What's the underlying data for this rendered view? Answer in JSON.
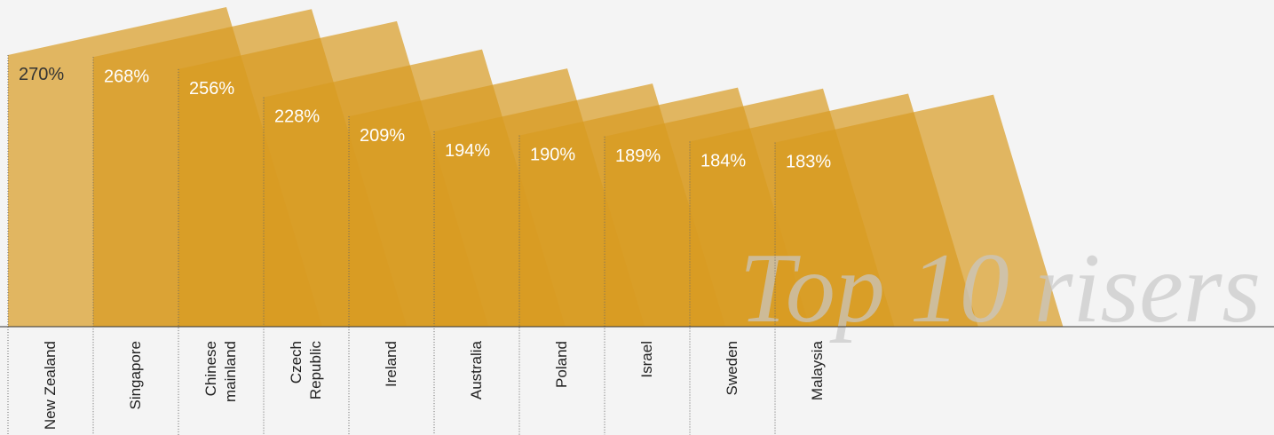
{
  "chart_data": {
    "type": "bar",
    "title": "Top 10 risers",
    "categories": [
      "New Zealand",
      "Singapore",
      "Chinese mainland",
      "Czech Republic",
      "Ireland",
      "Australia",
      "Poland",
      "Israel",
      "Sweden",
      "Malaysia"
    ],
    "values": [
      270,
      268,
      256,
      228,
      209,
      194,
      190,
      189,
      184,
      183
    ],
    "value_labels": [
      "270%",
      "268%",
      "256%",
      "228%",
      "209%",
      "194%",
      "190%",
      "189%",
      "184%",
      "183%"
    ],
    "color": "#d99b22"
  }
}
